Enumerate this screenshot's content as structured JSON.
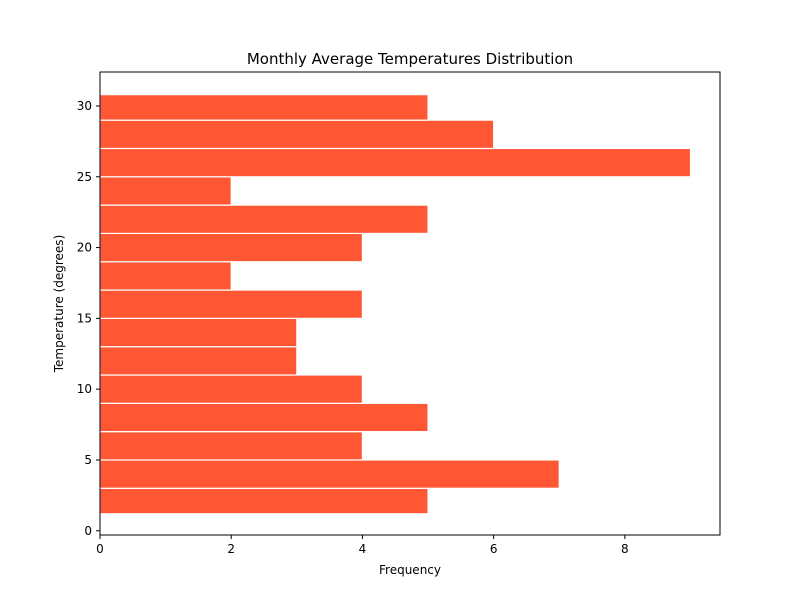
{
  "chart_data": {
    "type": "bar",
    "orientation": "horizontal",
    "title": "Monthly Average Temperatures Distribution",
    "xlabel": "Frequency",
    "ylabel": "Temperature (degrees)",
    "bar_color": "#ff5733",
    "grid": false,
    "legend": "none",
    "xlim": [
      0,
      9.45
    ],
    "ylim": [
      -0.3,
      32.4
    ],
    "x_ticks": [
      0,
      2,
      4,
      6,
      8
    ],
    "y_ticks": [
      0,
      5,
      10,
      15,
      20,
      25,
      30
    ],
    "bins": [
      {
        "start": 1.2,
        "end": 3.0,
        "count": 5
      },
      {
        "start": 3.0,
        "end": 5.0,
        "count": 7
      },
      {
        "start": 5.0,
        "end": 7.0,
        "count": 4
      },
      {
        "start": 7.0,
        "end": 9.0,
        "count": 5
      },
      {
        "start": 9.0,
        "end": 11.0,
        "count": 4
      },
      {
        "start": 11.0,
        "end": 13.0,
        "count": 3
      },
      {
        "start": 13.0,
        "end": 15.0,
        "count": 3
      },
      {
        "start": 15.0,
        "end": 17.0,
        "count": 4
      },
      {
        "start": 17.0,
        "end": 19.0,
        "count": 2
      },
      {
        "start": 19.0,
        "end": 21.0,
        "count": 4
      },
      {
        "start": 21.0,
        "end": 23.0,
        "count": 5
      },
      {
        "start": 23.0,
        "end": 25.0,
        "count": 2
      },
      {
        "start": 25.0,
        "end": 27.0,
        "count": 9
      },
      {
        "start": 27.0,
        "end": 29.0,
        "count": 6
      },
      {
        "start": 29.0,
        "end": 30.8,
        "count": 5
      }
    ]
  }
}
